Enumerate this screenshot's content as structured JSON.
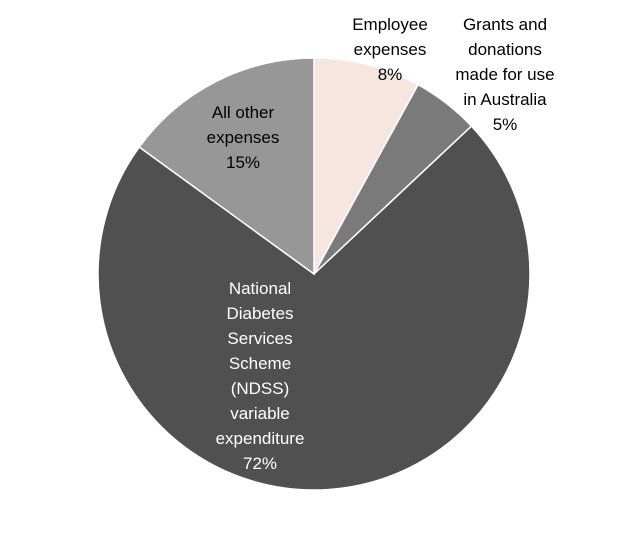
{
  "chart_data": {
    "type": "pie",
    "title": "",
    "start_angle_deg": 0,
    "direction": "clockwise",
    "slices": [
      {
        "label_lines": [
          "Employee",
          "expenses"
        ],
        "value": 8,
        "value_label": "8%",
        "color": "#f6e6df",
        "label_color": "#000000"
      },
      {
        "label_lines": [
          "Grants and",
          "donations",
          "made for use",
          "in Australia"
        ],
        "value": 5,
        "value_label": "5%",
        "color": "#7a7a7a",
        "label_color": "#000000"
      },
      {
        "label_lines": [
          "National",
          "Diabetes",
          "Services",
          "Scheme",
          "(NDSS)",
          "variable",
          "expenditure"
        ],
        "value": 72,
        "value_label": "72%",
        "color": "#505050",
        "label_color": "#ffffff"
      },
      {
        "label_lines": [
          "All other",
          "expenses"
        ],
        "value": 15,
        "value_label": "15%",
        "color": "#979797",
        "label_color": "#000000"
      }
    ]
  }
}
